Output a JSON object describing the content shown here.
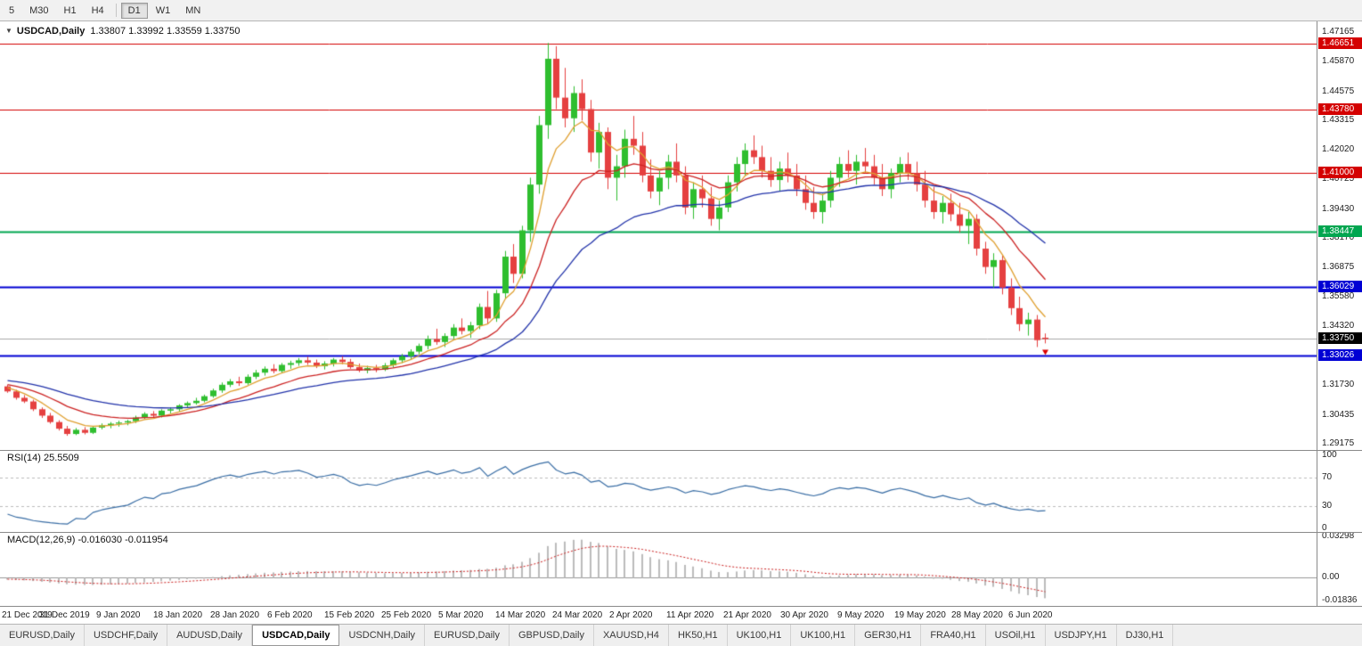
{
  "toolbar": {
    "timeframes": [
      {
        "label": "5",
        "active": false,
        "sep_before": false
      },
      {
        "label": "M30",
        "active": false,
        "sep_before": false
      },
      {
        "label": "H1",
        "active": false,
        "sep_before": false
      },
      {
        "label": "H4",
        "active": false,
        "sep_before": false
      },
      {
        "label": "D1",
        "active": true,
        "sep_before": true
      },
      {
        "label": "W1",
        "active": false,
        "sep_before": false
      },
      {
        "label": "MN",
        "active": false,
        "sep_before": false
      }
    ]
  },
  "chart": {
    "title": "USDCAD,Daily",
    "ohlc_text": "1.33807 1.33992 1.33559 1.33750",
    "dropdown_glyph": "▼"
  },
  "price_axis": {
    "labels": [
      "1.47165",
      "1.45870",
      "1.44575",
      "1.43315",
      "1.42020",
      "1.40725",
      "1.39430",
      "1.38170",
      "1.36875",
      "1.35580",
      "1.34320",
      "1.31730",
      "1.30435",
      "1.29175"
    ],
    "badges": [
      {
        "text": "1.46651",
        "color": "#d40000"
      },
      {
        "text": "1.43780",
        "color": "#d40000"
      },
      {
        "text": "1.41000",
        "color": "#d40000"
      },
      {
        "text": "1.38447",
        "color": "#00a650"
      },
      {
        "text": "1.36029",
        "color": "#0000d4"
      },
      {
        "text": "1.33750",
        "color": "#000000"
      },
      {
        "text": "1.33026",
        "color": "#0000d4"
      }
    ]
  },
  "rsi": {
    "label": "RSI(14) 25.5509",
    "axis": [
      {
        "text": "100",
        "value": 100
      },
      {
        "text": "70",
        "value": 70
      },
      {
        "text": "30",
        "value": 30
      },
      {
        "text": "0",
        "value": 0
      }
    ]
  },
  "macd": {
    "label": "MACD(12,26,9) -0.016030 -0.011954",
    "axis": [
      {
        "text": "0.03298",
        "value": 0.03298
      },
      {
        "text": "0.00",
        "value": 0
      },
      {
        "text": "-0.01836",
        "value": -0.01836
      }
    ]
  },
  "time_axis": {
    "labels": [
      "21 Dec 2019",
      "31 Dec 2019",
      "9 Jan 2020",
      "18 Jan 2020",
      "28 Jan 2020",
      "6 Feb 2020",
      "15 Feb 2020",
      "25 Feb 2020",
      "5 Mar 2020",
      "14 Mar 2020",
      "24 Mar 2020",
      "2 Apr 2020",
      "11 Apr 2020",
      "21 Apr 2020",
      "30 Apr 2020",
      "9 May 2020",
      "19 May 2020",
      "28 May 2020",
      "6 Jun 2020"
    ]
  },
  "tabs": {
    "active_index": 3,
    "items": [
      "EURUSD,Daily",
      "USDCHF,Daily",
      "AUDUSD,Daily",
      "USDCAD,Daily",
      "USDCNH,Daily",
      "EURUSD,Daily",
      "GBPUSD,Daily",
      "XAUUSD,H4",
      "HK50,H1",
      "UK100,H1",
      "UK100,H1",
      "GER30,H1",
      "FRA40,H1",
      "USOil,H1",
      "USDJPY,H1",
      "DJ30,H1"
    ]
  },
  "chart_data": {
    "type": "candlestick",
    "symbol": "USDCAD",
    "timeframe": "Daily",
    "current_ohlc": {
      "open": 1.33807,
      "high": 1.33992,
      "low": 1.33559,
      "close": 1.3375
    },
    "bid_price": 1.3375,
    "hlines": [
      {
        "price": 1.46651,
        "color": "#d40000",
        "width": 1
      },
      {
        "price": 1.4378,
        "color": "#d40000",
        "width": 1
      },
      {
        "price": 1.41,
        "color": "#d40000",
        "width": 1
      },
      {
        "price": 1.38447,
        "color": "#00a650",
        "width": 2
      },
      {
        "price": 1.36029,
        "color": "#0000d4",
        "width": 2
      },
      {
        "price": 1.33026,
        "color": "#0000d4",
        "width": 2
      }
    ],
    "rsi_period": 14,
    "macd_params": [
      12,
      26,
      9
    ],
    "ma_periods": {
      "fast": 6,
      "mid": 14,
      "slow": 30
    },
    "colors": {
      "bull": "#2fbe2f",
      "bear": "#e54040",
      "ma_fast": "#e0a030",
      "ma_mid": "#cc2222",
      "ma_slow": "#2233aa",
      "rsi": "#3a6ea5",
      "rsi_levels": "#bbbbbb",
      "macd_hist": "#bbbbbb",
      "macd_signal": "#cc2020",
      "bid_line": "#aaaaaa",
      "arrow": "#dd0000"
    },
    "warmup_closes": [
      1.323,
      1.3222,
      1.3215,
      1.322,
      1.3208,
      1.32,
      1.3192,
      1.3198,
      1.3185,
      1.3178,
      1.3182,
      1.3172,
      1.3168,
      1.3175,
      1.317,
      1.3162,
      1.3168,
      1.3165
    ],
    "candles": [
      [
        1.3168,
        1.3175,
        1.314,
        1.3146
      ],
      [
        1.3146,
        1.3153,
        1.311,
        1.3118
      ],
      [
        1.3118,
        1.313,
        1.3095,
        1.3102
      ],
      [
        1.3102,
        1.311,
        1.306,
        1.3068
      ],
      [
        1.3068,
        1.3076,
        1.303,
        1.304
      ],
      [
        1.304,
        1.3052,
        1.3005,
        1.3012
      ],
      [
        1.3012,
        1.302,
        1.2975,
        1.2983
      ],
      [
        1.2983,
        1.2995,
        1.2952,
        1.296
      ],
      [
        1.296,
        1.2986,
        1.2955,
        1.2978
      ],
      [
        1.2978,
        1.299,
        1.2958,
        1.2965
      ],
      [
        1.2965,
        1.2993,
        1.296,
        1.2988
      ],
      [
        1.2988,
        1.3006,
        1.298,
        1.2998
      ],
      [
        1.2998,
        1.3012,
        1.2985,
        1.3005
      ],
      [
        1.3005,
        1.3018,
        1.2992,
        1.301
      ],
      [
        1.301,
        1.3022,
        1.2998,
        1.3016
      ],
      [
        1.3016,
        1.304,
        1.3008,
        1.3032
      ],
      [
        1.3032,
        1.3055,
        1.3025,
        1.3048
      ],
      [
        1.3048,
        1.306,
        1.303,
        1.304
      ],
      [
        1.304,
        1.3068,
        1.3032,
        1.3062
      ],
      [
        1.3062,
        1.3076,
        1.305,
        1.3068
      ],
      [
        1.3068,
        1.309,
        1.3058,
        1.3085
      ],
      [
        1.3085,
        1.3102,
        1.3075,
        1.3095
      ],
      [
        1.3095,
        1.3118,
        1.3088,
        1.3105
      ],
      [
        1.3105,
        1.3132,
        1.3098,
        1.3125
      ],
      [
        1.3125,
        1.3158,
        1.3118,
        1.315
      ],
      [
        1.315,
        1.3185,
        1.314,
        1.3175
      ],
      [
        1.3175,
        1.32,
        1.3165,
        1.319
      ],
      [
        1.319,
        1.321,
        1.317,
        1.3182
      ],
      [
        1.3182,
        1.322,
        1.3175,
        1.321
      ],
      [
        1.321,
        1.324,
        1.32,
        1.3228
      ],
      [
        1.3228,
        1.3255,
        1.3215,
        1.3245
      ],
      [
        1.3245,
        1.3265,
        1.3225,
        1.3235
      ],
      [
        1.3235,
        1.327,
        1.3228,
        1.3262
      ],
      [
        1.3262,
        1.328,
        1.3245,
        1.327
      ],
      [
        1.327,
        1.3292,
        1.3258,
        1.3282
      ],
      [
        1.3282,
        1.3298,
        1.3262,
        1.3272
      ],
      [
        1.3272,
        1.3285,
        1.3248,
        1.3256
      ],
      [
        1.3256,
        1.3278,
        1.3242,
        1.3268
      ],
      [
        1.3268,
        1.3292,
        1.3255,
        1.3285
      ],
      [
        1.3285,
        1.33,
        1.3265,
        1.3275
      ],
      [
        1.3275,
        1.3288,
        1.3245,
        1.3252
      ],
      [
        1.3252,
        1.3268,
        1.323,
        1.3238
      ],
      [
        1.3238,
        1.3258,
        1.3225,
        1.3248
      ],
      [
        1.3248,
        1.3262,
        1.323,
        1.3242
      ],
      [
        1.3242,
        1.327,
        1.3235,
        1.326
      ],
      [
        1.326,
        1.329,
        1.325,
        1.3282
      ],
      [
        1.3282,
        1.331,
        1.327,
        1.33
      ],
      [
        1.33,
        1.333,
        1.3285,
        1.332
      ],
      [
        1.332,
        1.3355,
        1.3308,
        1.3345
      ],
      [
        1.3345,
        1.339,
        1.333,
        1.3375
      ],
      [
        1.3375,
        1.342,
        1.335,
        1.3362
      ],
      [
        1.3362,
        1.34,
        1.334,
        1.3388
      ],
      [
        1.3388,
        1.344,
        1.3375,
        1.3425
      ],
      [
        1.3425,
        1.3465,
        1.3395,
        1.341
      ],
      [
        1.341,
        1.345,
        1.338,
        1.3435
      ],
      [
        1.3435,
        1.353,
        1.3418,
        1.3515
      ],
      [
        1.3515,
        1.3585,
        1.344,
        1.3465
      ],
      [
        1.3465,
        1.359,
        1.345,
        1.3575
      ],
      [
        1.3575,
        1.376,
        1.355,
        1.3735
      ],
      [
        1.3735,
        1.379,
        1.362,
        1.366
      ],
      [
        1.366,
        1.387,
        1.364,
        1.385
      ],
      [
        1.385,
        1.408,
        1.38,
        1.405
      ],
      [
        1.405,
        1.435,
        1.401,
        1.431
      ],
      [
        1.431,
        1.4669,
        1.425,
        1.46
      ],
      [
        1.46,
        1.4655,
        1.438,
        1.443
      ],
      [
        1.443,
        1.456,
        1.43,
        1.434
      ],
      [
        1.434,
        1.448,
        1.428,
        1.445
      ],
      [
        1.445,
        1.451,
        1.433,
        1.438
      ],
      [
        1.438,
        1.442,
        1.415,
        1.419
      ],
      [
        1.419,
        1.432,
        1.412,
        1.428
      ],
      [
        1.428,
        1.43,
        1.403,
        1.408
      ],
      [
        1.408,
        1.418,
        1.398,
        1.413
      ],
      [
        1.413,
        1.429,
        1.408,
        1.425
      ],
      [
        1.425,
        1.435,
        1.418,
        1.422
      ],
      [
        1.422,
        1.428,
        1.406,
        1.409
      ],
      [
        1.409,
        1.416,
        1.399,
        1.402
      ],
      [
        1.402,
        1.411,
        1.396,
        1.408
      ],
      [
        1.408,
        1.418,
        1.403,
        1.415
      ],
      [
        1.415,
        1.423,
        1.406,
        1.409
      ],
      [
        1.409,
        1.413,
        1.392,
        1.395
      ],
      [
        1.395,
        1.406,
        1.39,
        1.403
      ],
      [
        1.403,
        1.409,
        1.395,
        1.399
      ],
      [
        1.399,
        1.404,
        1.387,
        1.39
      ],
      [
        1.39,
        1.398,
        1.385,
        1.395
      ],
      [
        1.395,
        1.409,
        1.393,
        1.406
      ],
      [
        1.406,
        1.417,
        1.402,
        1.414
      ],
      [
        1.414,
        1.423,
        1.409,
        1.42
      ],
      [
        1.42,
        1.4265,
        1.414,
        1.417
      ],
      [
        1.417,
        1.422,
        1.408,
        1.411
      ],
      [
        1.411,
        1.417,
        1.404,
        1.407
      ],
      [
        1.407,
        1.415,
        1.402,
        1.412
      ],
      [
        1.412,
        1.419,
        1.406,
        1.409
      ],
      [
        1.409,
        1.414,
        1.4,
        1.403
      ],
      [
        1.403,
        1.409,
        1.394,
        1.397
      ],
      [
        1.397,
        1.404,
        1.39,
        1.393
      ],
      [
        1.393,
        1.401,
        1.388,
        1.398
      ],
      [
        1.398,
        1.411,
        1.395,
        1.408
      ],
      [
        1.408,
        1.417,
        1.404,
        1.414
      ],
      [
        1.414,
        1.42,
        1.408,
        1.411
      ],
      [
        1.411,
        1.418,
        1.405,
        1.415
      ],
      [
        1.415,
        1.421,
        1.41,
        1.413
      ],
      [
        1.413,
        1.418,
        1.405,
        1.408
      ],
      [
        1.408,
        1.414,
        1.4,
        1.403
      ],
      [
        1.403,
        1.412,
        1.399,
        1.41
      ],
      [
        1.41,
        1.417,
        1.406,
        1.414
      ],
      [
        1.414,
        1.419,
        1.407,
        1.41
      ],
      [
        1.41,
        1.415,
        1.402,
        1.405
      ],
      [
        1.405,
        1.411,
        1.395,
        1.398
      ],
      [
        1.398,
        1.404,
        1.39,
        1.393
      ],
      [
        1.393,
        1.4,
        1.388,
        1.397
      ],
      [
        1.397,
        1.401,
        1.389,
        1.392
      ],
      [
        1.392,
        1.397,
        1.384,
        1.387
      ],
      [
        1.387,
        1.393,
        1.379,
        1.39
      ],
      [
        1.39,
        1.392,
        1.374,
        1.377
      ],
      [
        1.377,
        1.38,
        1.366,
        1.369
      ],
      [
        1.369,
        1.375,
        1.36,
        1.372
      ],
      [
        1.372,
        1.374,
        1.357,
        1.36
      ],
      [
        1.36,
        1.364,
        1.348,
        1.351
      ],
      [
        1.351,
        1.356,
        1.341,
        1.344
      ],
      [
        1.344,
        1.349,
        1.339,
        1.346
      ],
      [
        1.346,
        1.348,
        1.334,
        1.337
      ],
      [
        1.33807,
        1.33992,
        1.33559,
        1.3375
      ]
    ]
  }
}
